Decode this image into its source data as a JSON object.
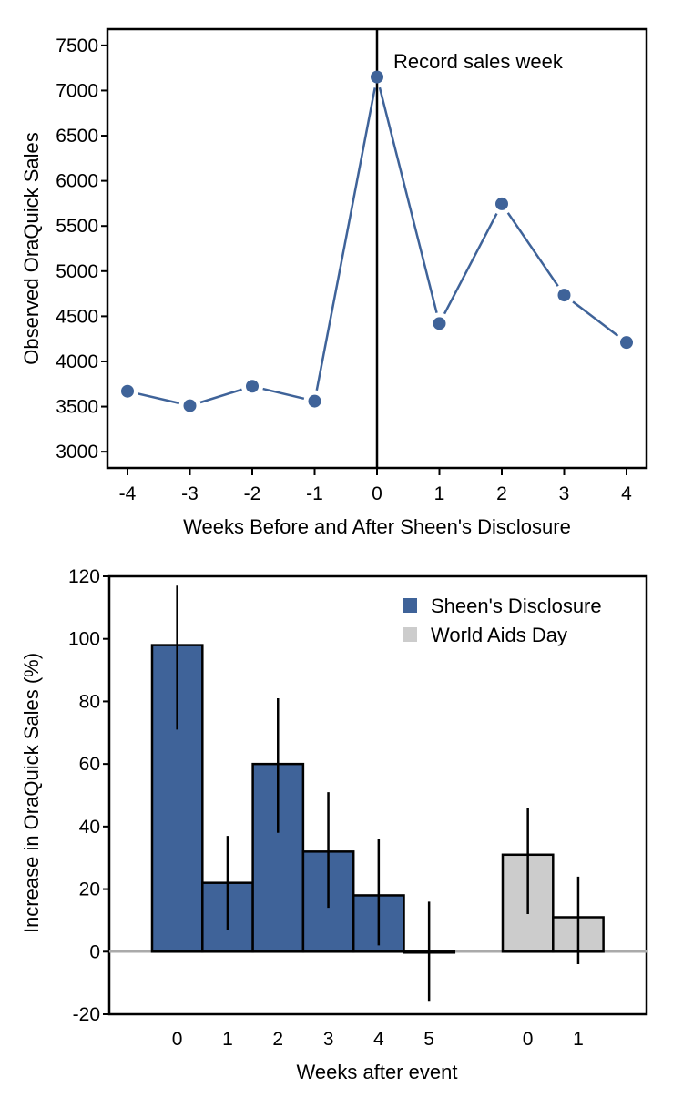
{
  "chart_data": [
    {
      "type": "line",
      "xlabel": "Weeks Before and After Sheen's Disclosure",
      "ylabel": "Observed OraQuick Sales",
      "x": [
        -4,
        -3,
        -2,
        -1,
        0,
        1,
        2,
        3,
        4
      ],
      "x_tick_labels": [
        "-4",
        "-3",
        "-2",
        "-1",
        "0",
        "1",
        "2",
        "3",
        "4"
      ],
      "y": [
        3670,
        3510,
        3725,
        3560,
        7150,
        4420,
        5745,
        4735,
        4210
      ],
      "ylim": [
        2820,
        7680
      ],
      "y_ticks": [
        3000,
        3500,
        4000,
        4500,
        5000,
        5500,
        6000,
        6500,
        7000,
        7500
      ],
      "y_tick_labels": [
        "3000",
        "3500",
        "4000",
        "4500",
        "5000",
        "5500",
        "6000",
        "6500",
        "7000",
        "7500"
      ],
      "vertical_line_x": 0,
      "annotation": "Record sales week",
      "series_color": "#3f6399",
      "grid": false
    },
    {
      "type": "bar",
      "xlabel": "Weeks after event",
      "ylabel": "Increase in OraQuick Sales (%)",
      "ylim": [
        -20,
        120
      ],
      "y_ticks": [
        -20,
        0,
        20,
        40,
        60,
        80,
        100,
        120
      ],
      "y_tick_labels": [
        "-20",
        "0",
        "20",
        "40",
        "60",
        "80",
        "100",
        "120"
      ],
      "legend": [
        "Sheen's Disclosure",
        "World Aids Day"
      ],
      "legend_position": "top-right",
      "grid": false,
      "series": [
        {
          "name": "Sheen's Disclosure",
          "color": "#3f6399",
          "categories": [
            "0",
            "1",
            "2",
            "3",
            "4",
            "5"
          ],
          "values": [
            98,
            22,
            60,
            32,
            18,
            0
          ],
          "error_low": [
            71,
            7,
            38,
            14,
            2,
            -16
          ],
          "error_high": [
            117,
            37,
            81,
            51,
            36,
            16
          ]
        },
        {
          "name": "World Aids Day",
          "color": "#cccccc",
          "categories": [
            "0",
            "1"
          ],
          "values": [
            31,
            11
          ],
          "error_low": [
            12,
            -4
          ],
          "error_high": [
            46,
            24
          ]
        }
      ]
    }
  ]
}
